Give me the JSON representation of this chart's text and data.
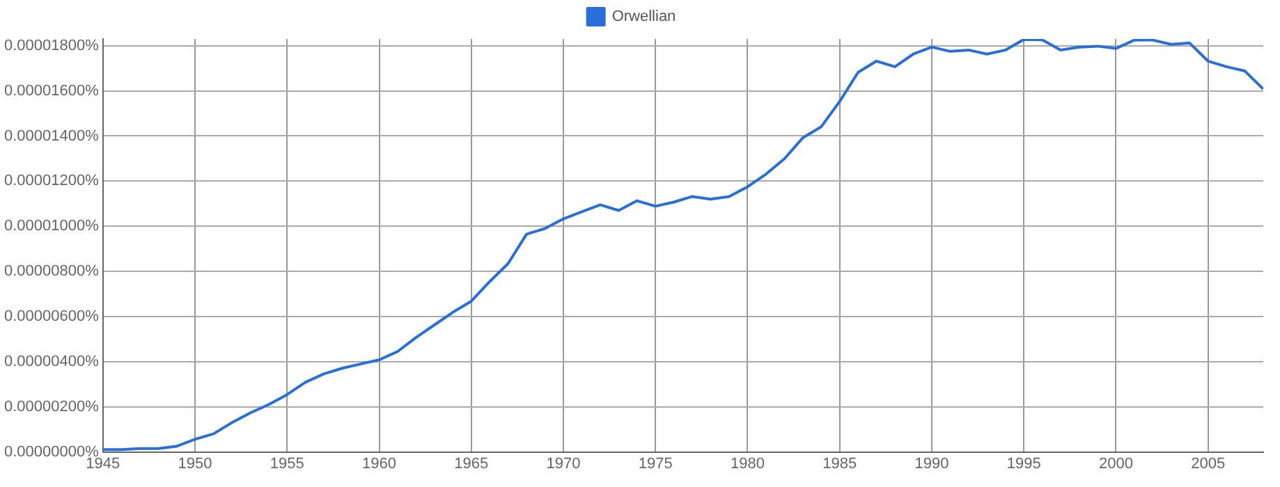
{
  "chart_data": {
    "type": "line",
    "legend": "top",
    "grid": true,
    "marker": "none",
    "line_style": "solid",
    "x": [
      1945,
      1946,
      1947,
      1948,
      1949,
      1950,
      1951,
      1952,
      1953,
      1954,
      1955,
      1956,
      1957,
      1958,
      1959,
      1960,
      1961,
      1962,
      1963,
      1964,
      1965,
      1966,
      1967,
      1968,
      1969,
      1970,
      1971,
      1972,
      1973,
      1974,
      1975,
      1976,
      1977,
      1978,
      1979,
      1980,
      1981,
      1982,
      1983,
      1984,
      1985,
      1986,
      1987,
      1988,
      1989,
      1990,
      1991,
      1992,
      1993,
      1994,
      1995,
      1996,
      1997,
      1998,
      1999,
      2000,
      2001,
      2002,
      2003,
      2004,
      2005,
      2006,
      2007,
      2008
    ],
    "series": [
      {
        "name": "Orwellian",
        "color": "#2a6fd8",
        "values": [
          1e-07,
          1e-07,
          1.5e-07,
          1.5e-07,
          2.5e-07,
          5.6e-07,
          8e-07,
          1.3e-06,
          1.73e-06,
          2.1e-06,
          2.54e-06,
          3.09e-06,
          3.46e-06,
          3.71e-06,
          3.9e-06,
          4.08e-06,
          4.45e-06,
          5.07e-06,
          5.63e-06,
          6.19e-06,
          6.68e-06,
          7.55e-06,
          8.35e-06,
          9.65e-06,
          9.9e-06,
          1.033e-05,
          1.064e-05,
          1.095e-05,
          1.07e-05,
          1.113e-05,
          1.089e-05,
          1.107e-05,
          1.132e-05,
          1.12e-05,
          1.132e-05,
          1.175e-05,
          1.231e-05,
          1.299e-05,
          1.392e-05,
          1.441e-05,
          1.553e-05,
          1.682e-05,
          1.732e-05,
          1.707e-05,
          1.763e-05,
          1.794e-05,
          1.775e-05,
          1.781e-05,
          1.763e-05,
          1.781e-05,
          1.828e-05,
          1.826e-05,
          1.781e-05,
          1.794e-05,
          1.798e-05,
          1.788e-05,
          1.825e-05,
          1.825e-05,
          1.806e-05,
          1.812e-05,
          1.732e-05,
          1.707e-05,
          1.688e-05,
          1.608e-05
        ]
      }
    ],
    "xlim": [
      1945,
      2008
    ],
    "xticks": [
      1945,
      1950,
      1955,
      1960,
      1965,
      1970,
      1975,
      1980,
      1985,
      1990,
      1995,
      2000,
      2005
    ],
    "ylim": [
      0,
      1.83e-05
    ],
    "yticks": [
      {
        "value": 0,
        "label": "0.00000000%"
      },
      {
        "value": 2e-06,
        "label": "0.00000200%"
      },
      {
        "value": 4e-06,
        "label": "0.00000400%"
      },
      {
        "value": 6e-06,
        "label": "0.00000600%"
      },
      {
        "value": 8e-06,
        "label": "0.00000800%"
      },
      {
        "value": 1e-05,
        "label": "0.00001000%"
      },
      {
        "value": 1.2e-05,
        "label": "0.00001200%"
      },
      {
        "value": 1.4e-05,
        "label": "0.00001400%"
      },
      {
        "value": 1.6e-05,
        "label": "0.00001600%"
      },
      {
        "value": 1.8e-05,
        "label": "0.00001800%"
      }
    ]
  }
}
